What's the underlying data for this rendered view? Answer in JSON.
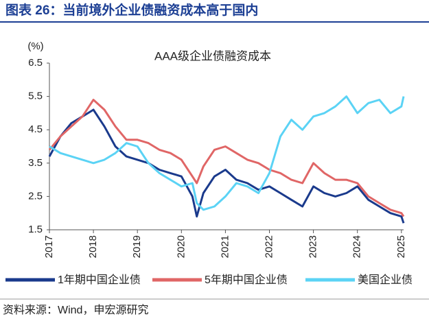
{
  "chart_data": {
    "type": "line",
    "title": "图表 26：当前境外企业债融资成本高于国内",
    "subtitle": "AAA级企业债融资成本",
    "y_label": "(%)",
    "source": "资料来源：Wind，申宏源研究",
    "x": [
      2017,
      2017.25,
      2017.5,
      2017.75,
      2018,
      2018.25,
      2018.5,
      2018.75,
      2019,
      2019.25,
      2019.5,
      2019.75,
      2020,
      2020.25,
      2020.35,
      2020.5,
      2020.75,
      2021,
      2021.25,
      2021.5,
      2021.75,
      2022,
      2022.25,
      2022.5,
      2022.75,
      2023,
      2023.25,
      2023.5,
      2023.75,
      2024,
      2024.25,
      2024.5,
      2024.75,
      2025,
      2025.05
    ],
    "series": [
      {
        "name": "1年期中国企业债",
        "color": "#1a3a8c",
        "values": [
          3.7,
          4.3,
          4.7,
          4.9,
          5.1,
          4.6,
          4.0,
          3.7,
          3.6,
          3.5,
          3.3,
          3.2,
          3.1,
          2.5,
          1.9,
          2.6,
          3.1,
          3.3,
          3.0,
          2.9,
          2.7,
          2.8,
          2.6,
          2.4,
          2.2,
          2.8,
          2.6,
          2.5,
          2.6,
          2.8,
          2.4,
          2.2,
          2.0,
          1.9,
          1.7
        ]
      },
      {
        "name": "5年期中国企业债",
        "color": "#e06666",
        "values": [
          3.9,
          4.3,
          4.6,
          4.9,
          5.4,
          5.1,
          4.6,
          4.2,
          4.2,
          4.1,
          3.9,
          3.8,
          3.6,
          3.1,
          2.9,
          3.4,
          3.9,
          4.0,
          3.8,
          3.6,
          3.5,
          3.3,
          3.2,
          3.0,
          2.9,
          3.5,
          3.2,
          3.0,
          3.0,
          2.9,
          2.5,
          2.3,
          2.1,
          2.0,
          1.9
        ]
      },
      {
        "name": "美国企业债",
        "color": "#5bd3f5",
        "values": [
          4.0,
          3.8,
          3.7,
          3.6,
          3.5,
          3.6,
          3.8,
          4.1,
          4.0,
          3.5,
          3.2,
          3.0,
          2.8,
          2.9,
          2.3,
          2.1,
          2.2,
          2.5,
          2.9,
          2.8,
          2.6,
          3.2,
          4.3,
          4.8,
          4.5,
          4.9,
          5.0,
          5.2,
          5.5,
          5.0,
          5.3,
          5.4,
          5.0,
          5.2,
          5.5
        ]
      }
    ],
    "xlim": [
      2017,
      2025.05
    ],
    "xticks": [
      2017,
      2018,
      2019,
      2020,
      2021,
      2022,
      2023,
      2024,
      2025
    ],
    "ylim": [
      1.5,
      6.5
    ],
    "yticks": [
      6.5,
      5.5,
      4.5,
      3.5,
      2.5,
      1.5
    ],
    "grid": false,
    "legend": "bottom"
  }
}
